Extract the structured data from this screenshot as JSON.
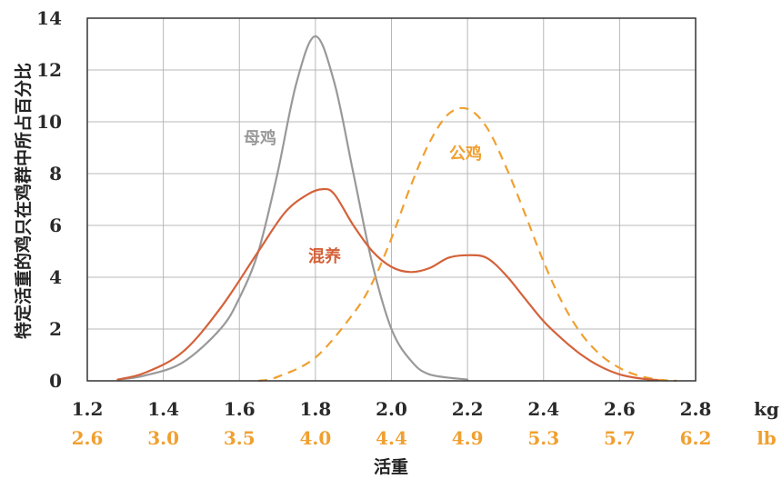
{
  "chart_data": {
    "type": "line",
    "xlabel": "活重",
    "ylabel": "特定活重的鸡只在鸡群中所占百分比",
    "xlim": [
      1.2,
      2.8
    ],
    "ylim": [
      0,
      14
    ],
    "grid": true,
    "x_ticks_kg": [
      "1.2",
      "1.4",
      "1.6",
      "1.8",
      "2.0",
      "2.2",
      "2.4",
      "2.6",
      "2.8"
    ],
    "x_ticks_lb": [
      "2.6",
      "3.0",
      "3.5",
      "4.0",
      "4.4",
      "4.9",
      "5.3",
      "5.7",
      "6.2"
    ],
    "y_ticks": [
      "0",
      "2",
      "4",
      "6",
      "8",
      "10",
      "12",
      "14"
    ],
    "unit_kg": "kg",
    "unit_lb": "lb",
    "colors": {
      "hens": "#999999",
      "roosters": "#f0a030",
      "mixed": "#d4623a",
      "lb": "#f0a030",
      "grid": "#b8b8b8"
    },
    "series": [
      {
        "name": "母鸡",
        "style": "solid",
        "x": [
          1.28,
          1.35,
          1.45,
          1.55,
          1.6,
          1.65,
          1.7,
          1.75,
          1.8,
          1.85,
          1.9,
          1.95,
          2.0,
          2.05,
          2.1,
          2.2
        ],
        "y": [
          0.05,
          0.2,
          0.7,
          2.0,
          3.2,
          5.0,
          8.0,
          11.5,
          13.3,
          11.5,
          8.0,
          4.5,
          2.0,
          0.8,
          0.25,
          0.05
        ]
      },
      {
        "name": "公鸡",
        "style": "dashed",
        "x": [
          1.65,
          1.7,
          1.8,
          1.9,
          1.95,
          2.0,
          2.05,
          2.1,
          2.15,
          2.2,
          2.25,
          2.3,
          2.35,
          2.4,
          2.45,
          2.5,
          2.55,
          2.6,
          2.65,
          2.7,
          2.75
        ],
        "y": [
          0.0,
          0.15,
          0.9,
          2.6,
          3.8,
          5.5,
          7.5,
          9.2,
          10.3,
          10.5,
          9.8,
          8.3,
          6.5,
          4.6,
          3.0,
          1.8,
          1.0,
          0.5,
          0.2,
          0.05,
          0.0
        ]
      },
      {
        "name": "混养",
        "style": "solid",
        "x": [
          1.28,
          1.35,
          1.45,
          1.55,
          1.65,
          1.72,
          1.78,
          1.82,
          1.85,
          1.9,
          1.95,
          2.0,
          2.05,
          2.1,
          2.15,
          2.2,
          2.25,
          2.3,
          2.35,
          2.4,
          2.45,
          2.5,
          2.55,
          2.6,
          2.65,
          2.7
        ],
        "y": [
          0.05,
          0.3,
          1.1,
          2.8,
          5.0,
          6.5,
          7.2,
          7.4,
          7.2,
          6.0,
          5.0,
          4.4,
          4.2,
          4.35,
          4.75,
          4.85,
          4.75,
          4.1,
          3.2,
          2.3,
          1.6,
          1.0,
          0.55,
          0.25,
          0.1,
          0.03
        ]
      }
    ]
  }
}
